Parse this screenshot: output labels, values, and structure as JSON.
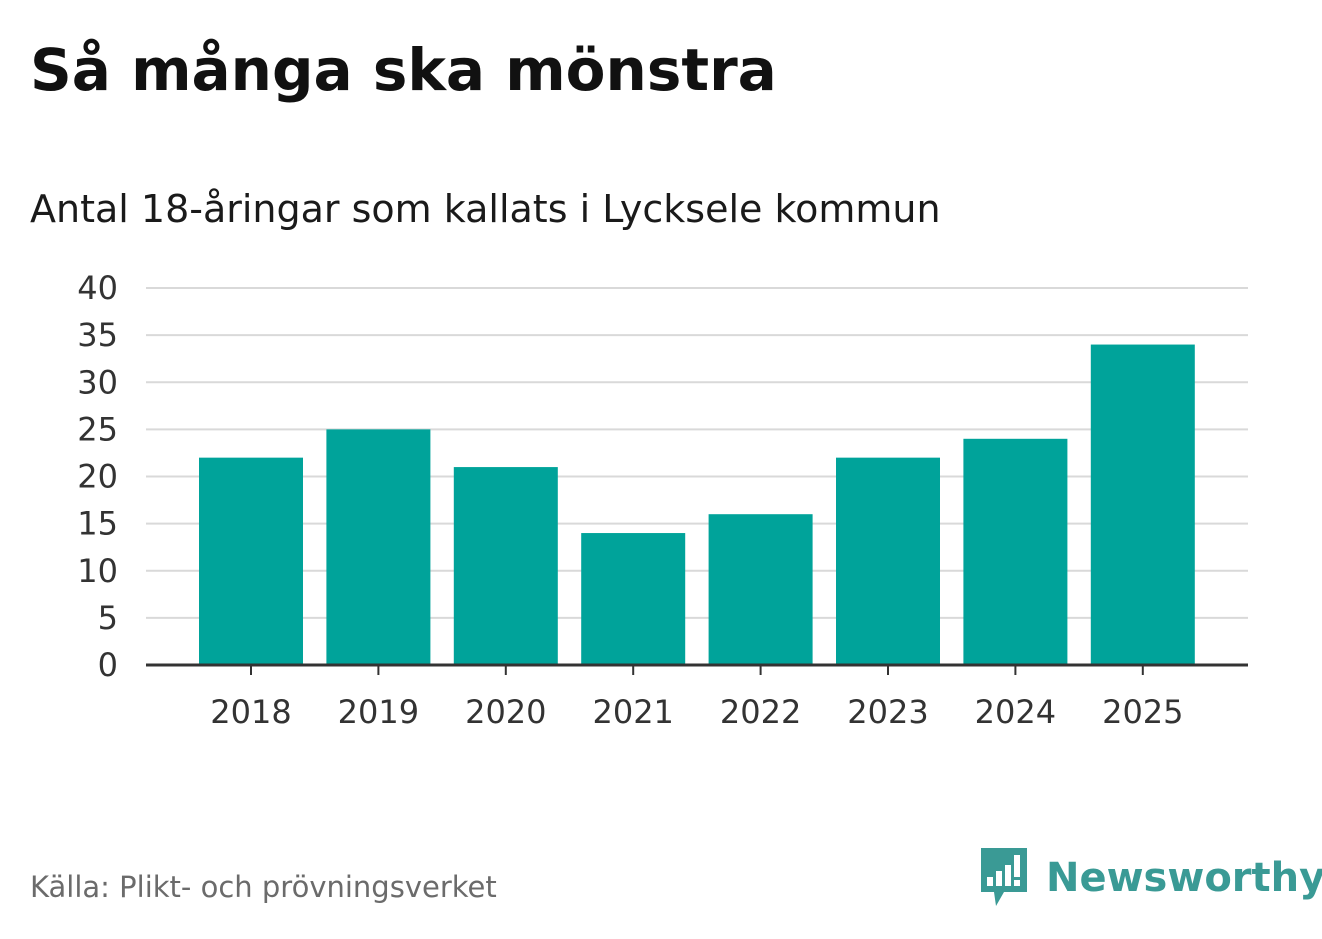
{
  "header": {
    "title": "Så många ska mönstra",
    "subtitle": "Antal 18-åringar som kallats i Lycksele kommun"
  },
  "footer": {
    "source": "Källa: Plikt- och prövningsverket",
    "brand": "Newsworthy",
    "brand_icon": "newsworthy-logo-icon"
  },
  "colors": {
    "bar": "#00a39a",
    "grid": "#d9d9d9",
    "axis": "#333333",
    "brand": "#3a9a95"
  },
  "chart_data": {
    "type": "bar",
    "title": "Så många ska mönstra",
    "subtitle": "Antal 18-åringar som kallats i Lycksele kommun",
    "categories": [
      "2018",
      "2019",
      "2020",
      "2021",
      "2022",
      "2023",
      "2024",
      "2025"
    ],
    "values": [
      22,
      25,
      21,
      14,
      16,
      22,
      24,
      34
    ],
    "ylim": [
      0,
      40
    ],
    "yticks": [
      "0",
      "5",
      "10",
      "15",
      "20",
      "25",
      "30",
      "35",
      "40"
    ],
    "xlabel": "",
    "ylabel": "",
    "grid": true,
    "legend": false
  }
}
